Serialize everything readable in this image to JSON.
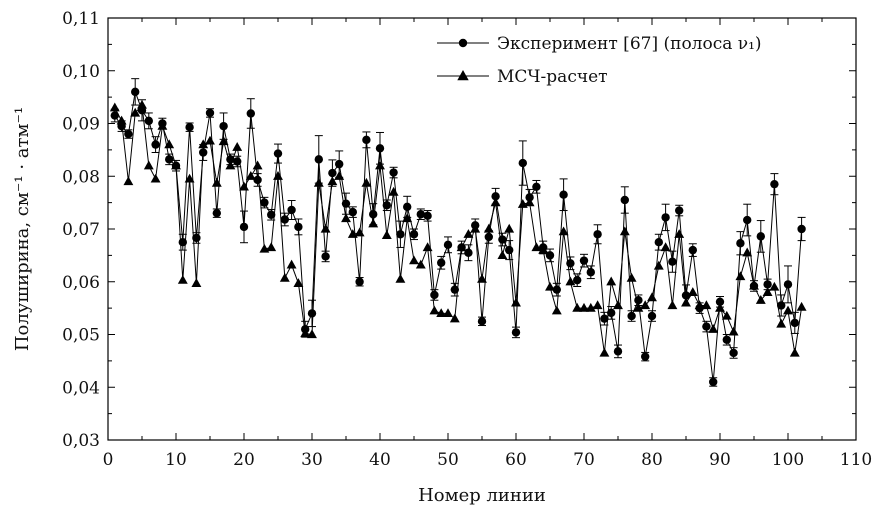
{
  "chart_data": {
    "type": "line",
    "xlabel": "Номер линии",
    "ylabel": "Полуширина, см⁻¹ · атм⁻¹",
    "xlim": [
      0,
      110
    ],
    "ylim": [
      0.03,
      0.11
    ],
    "xticks": [
      0,
      10,
      20,
      30,
      40,
      50,
      60,
      70,
      80,
      90,
      100,
      110
    ],
    "xtick_labels": [
      "0",
      "10",
      "20",
      "30",
      "40",
      "50",
      "60",
      "70",
      "80",
      "90",
      "100",
      "110"
    ],
    "yticks": [
      0.03,
      0.04,
      0.05,
      0.06,
      0.07,
      0.08,
      0.09,
      0.1,
      0.11
    ],
    "ytick_labels": [
      "0,03",
      "0,04",
      "0,05",
      "0,06",
      "0,07",
      "0,08",
      "0,09",
      "0,10",
      "0,11"
    ],
    "grid": false,
    "legend_position": "top-right",
    "x": [
      1,
      2,
      3,
      4,
      5,
      6,
      7,
      8,
      9,
      10,
      11,
      12,
      13,
      14,
      15,
      16,
      17,
      18,
      19,
      20,
      21,
      22,
      23,
      24,
      25,
      26,
      27,
      28,
      29,
      30,
      31,
      32,
      33,
      34,
      35,
      36,
      37,
      38,
      39,
      40,
      41,
      42,
      43,
      44,
      45,
      46,
      47,
      48,
      49,
      50,
      51,
      52,
      53,
      54,
      55,
      56,
      57,
      58,
      59,
      60,
      61,
      62,
      63,
      64,
      65,
      66,
      67,
      68,
      69,
      70,
      71,
      72,
      73,
      74,
      75,
      76,
      77,
      78,
      79,
      80,
      81,
      82,
      83,
      84,
      85,
      86,
      87,
      88,
      89,
      90,
      91,
      92,
      93,
      94,
      95,
      96,
      97,
      98,
      99,
      100,
      101,
      102
    ],
    "series": [
      {
        "name": "Эксперимент [67] (полоса ν₁)",
        "marker": "circle",
        "color": "#000000",
        "values": [
          0.0915,
          0.0895,
          0.088,
          0.096,
          0.0925,
          0.0905,
          0.086,
          0.09,
          0.0832,
          0.082,
          0.0675,
          0.0893,
          0.0683,
          0.0845,
          0.092,
          0.073,
          0.0895,
          0.0832,
          0.0828,
          0.0704,
          0.0919,
          0.0793,
          0.075,
          0.0727,
          0.0843,
          0.0718,
          0.0736,
          0.0704,
          0.051,
          0.054,
          0.0832,
          0.0648,
          0.0806,
          0.0823,
          0.0748,
          0.0732,
          0.06,
          0.0869,
          0.0728,
          0.0853,
          0.0745,
          0.0807,
          0.069,
          0.0742,
          0.069,
          0.0728,
          0.0725,
          0.0575,
          0.0636,
          0.067,
          0.0585,
          0.0665,
          0.0655,
          0.0707,
          0.0525,
          0.0685,
          0.0762,
          0.068,
          0.066,
          0.0504,
          0.0825,
          0.076,
          0.078,
          0.0665,
          0.065,
          0.0585,
          0.0765,
          0.0635,
          0.0603,
          0.064,
          0.0618,
          0.069,
          0.053,
          0.0541,
          0.0468,
          0.0755,
          0.0535,
          0.0565,
          0.0458,
          0.0535,
          0.0675,
          0.0722,
          0.0638,
          0.0735,
          0.0574,
          0.066,
          0.055,
          0.0515,
          0.041,
          0.0562,
          0.049,
          0.0465,
          0.0673,
          0.0717,
          0.0592,
          0.0686,
          0.0595,
          0.0785,
          0.0555,
          0.0595,
          0.0522,
          0.07
        ],
        "errors": [
          0.0012,
          0.001,
          0.0008,
          0.0025,
          0.002,
          0.0015,
          0.0015,
          0.001,
          0.001,
          0.001,
          0.0015,
          0.0008,
          0.001,
          0.0015,
          0.0008,
          0.0008,
          0.0025,
          0.001,
          0.001,
          0.003,
          0.0028,
          0.0012,
          0.001,
          0.001,
          0.0018,
          0.0012,
          0.0018,
          0.0015,
          0.0015,
          0.0025,
          0.0045,
          0.001,
          0.0025,
          0.0025,
          0.002,
          0.001,
          0.0008,
          0.0015,
          0.002,
          0.003,
          0.001,
          0.001,
          0.0025,
          0.002,
          0.001,
          0.001,
          0.001,
          0.001,
          0.0012,
          0.0015,
          0.0012,
          0.0012,
          0.0015,
          0.0012,
          0.0008,
          0.0012,
          0.0015,
          0.0012,
          0.0018,
          0.001,
          0.0042,
          0.0015,
          0.0012,
          0.0012,
          0.0012,
          0.0012,
          0.003,
          0.0012,
          0.0012,
          0.0012,
          0.0012,
          0.0018,
          0.0012,
          0.0012,
          0.0012,
          0.0025,
          0.001,
          0.001,
          0.0008,
          0.001,
          0.0015,
          0.0025,
          0.002,
          0.001,
          0.002,
          0.0012,
          0.001,
          0.001,
          0.0008,
          0.001,
          0.001,
          0.001,
          0.0022,
          0.003,
          0.001,
          0.003,
          0.001,
          0.002,
          0.002,
          0.0035,
          0.002,
          0.0022
        ]
      },
      {
        "name": "МСЧ-расчет",
        "marker": "triangle",
        "color": "#000000",
        "values": [
          0.093,
          0.0905,
          0.079,
          0.092,
          0.0935,
          0.082,
          0.0795,
          0.0895,
          0.086,
          0.082,
          0.0603,
          0.0795,
          0.0597,
          0.086,
          0.0867,
          0.0787,
          0.0866,
          0.082,
          0.0855,
          0.078,
          0.08,
          0.082,
          0.0662,
          0.0665,
          0.08,
          0.0607,
          0.0632,
          0.0597,
          0.0502,
          0.05,
          0.0787,
          0.07,
          0.079,
          0.08,
          0.072,
          0.069,
          0.0693,
          0.0787,
          0.071,
          0.082,
          0.0688,
          0.077,
          0.0605,
          0.072,
          0.064,
          0.0632,
          0.0665,
          0.0545,
          0.054,
          0.054,
          0.053,
          0.0665,
          0.069,
          0.07,
          0.0605,
          0.07,
          0.075,
          0.065,
          0.07,
          0.056,
          0.0747,
          0.075,
          0.0665,
          0.066,
          0.059,
          0.0545,
          0.0695,
          0.06,
          0.055,
          0.055,
          0.055,
          0.0555,
          0.0465,
          0.06,
          0.0555,
          0.0695,
          0.0607,
          0.055,
          0.0555,
          0.057,
          0.063,
          0.0665,
          0.0555,
          0.069,
          0.056,
          0.058,
          0.0555,
          0.0555,
          0.051,
          0.055,
          0.0535,
          0.0505,
          0.061,
          0.0655,
          0.0592,
          0.0565,
          0.058,
          0.059,
          0.052,
          0.0545,
          0.0465,
          0.0552
        ]
      }
    ]
  }
}
